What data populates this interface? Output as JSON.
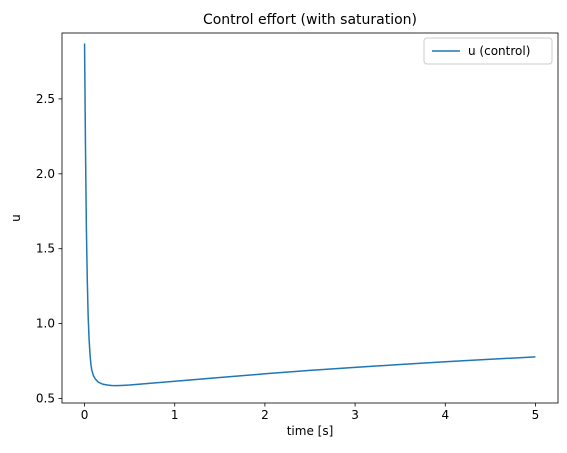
{
  "chart_data": {
    "type": "line",
    "title": "Control effort (with saturation)",
    "xlabel": "time [s]",
    "ylabel": "u",
    "xlim": [
      -0.25,
      5.25
    ],
    "ylim": [
      0.47,
      2.94
    ],
    "xticks": [
      0,
      1,
      2,
      3,
      4,
      5
    ],
    "xtick_labels": [
      "0",
      "1",
      "2",
      "3",
      "4",
      "5"
    ],
    "yticks": [
      0.5,
      1.0,
      1.5,
      2.0,
      2.5
    ],
    "ytick_labels": [
      "0.5",
      "1.0",
      "1.5",
      "2.0",
      "2.5"
    ],
    "grid": false,
    "legend": "top-right",
    "series": [
      {
        "name": "u (control)",
        "color": "#1f77b4",
        "x": [
          0,
          0.01,
          0.02,
          0.03,
          0.04,
          0.05,
          0.06,
          0.07,
          0.08,
          0.1,
          0.12,
          0.15,
          0.2,
          0.25,
          0.3,
          0.35,
          0.4,
          0.5,
          0.7,
          1.0,
          1.5,
          2.0,
          2.5,
          3.0,
          3.5,
          4.0,
          4.5,
          5.0
        ],
        "y": [
          2.87,
          2.2,
          1.65,
          1.3,
          1.05,
          0.9,
          0.8,
          0.73,
          0.69,
          0.65,
          0.63,
          0.61,
          0.596,
          0.59,
          0.587,
          0.586,
          0.587,
          0.59,
          0.6,
          0.615,
          0.64,
          0.665,
          0.688,
          0.708,
          0.727,
          0.745,
          0.762,
          0.778
        ]
      }
    ]
  }
}
